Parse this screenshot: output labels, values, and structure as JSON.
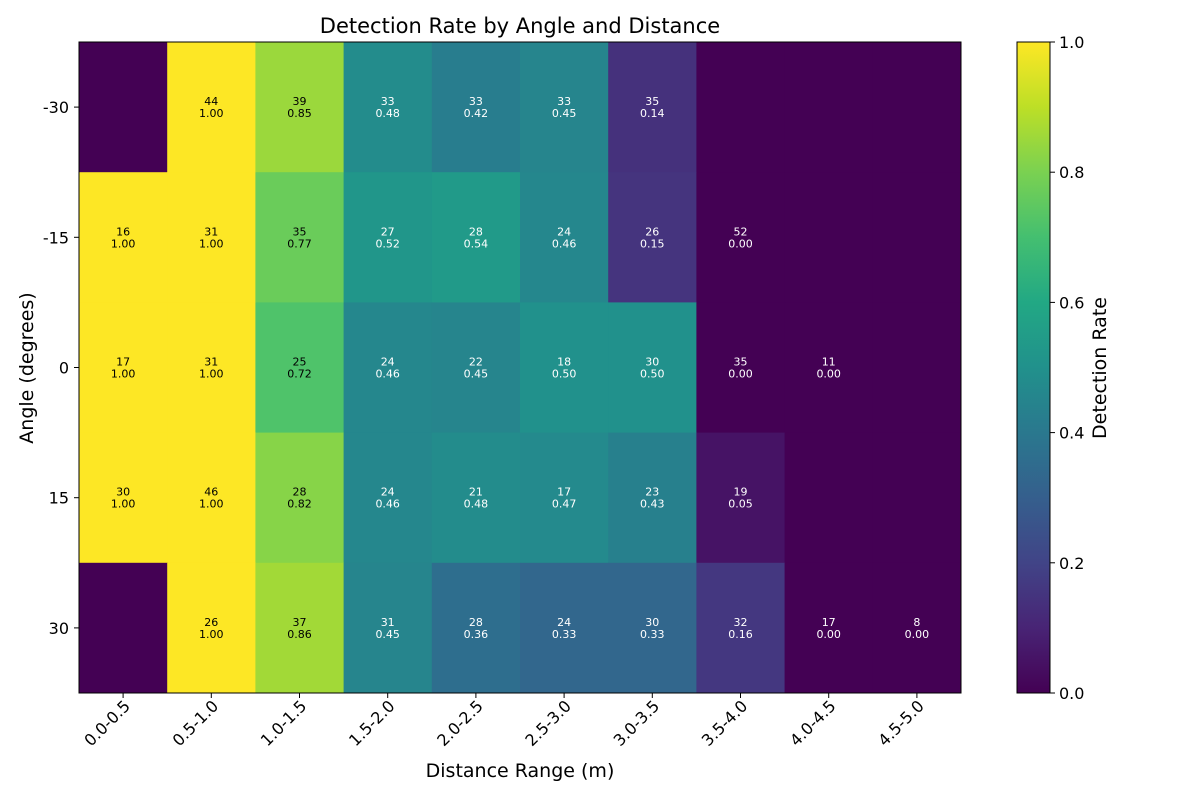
{
  "chart_data": {
    "type": "heatmap",
    "title": "Detection Rate by Angle and Distance",
    "xlabel": "Distance Range (m)",
    "ylabel": "Angle (degrees)",
    "colorbar_label": "Detection Rate",
    "colormap": "viridis",
    "x_categories": [
      "0.0-0.5",
      "0.5-1.0",
      "1.0-1.5",
      "1.5-2.0",
      "2.0-2.5",
      "2.5-3.0",
      "3.0-3.5",
      "3.5-4.0",
      "4.0-4.5",
      "4.5-5.0"
    ],
    "y_categories": [
      "-30",
      "-15",
      "0",
      "15",
      "30"
    ],
    "colorbar_range": [
      0,
      1
    ],
    "colorbar_ticks": [
      "0.0",
      "0.2",
      "0.4",
      "0.6",
      "0.8",
      "1.0"
    ],
    "rates": [
      [
        0.0,
        1.0,
        0.85,
        0.48,
        0.42,
        0.45,
        0.14,
        0.0,
        0.0,
        0.0
      ],
      [
        1.0,
        1.0,
        0.77,
        0.52,
        0.54,
        0.46,
        0.15,
        0.0,
        0.0,
        0.0
      ],
      [
        1.0,
        1.0,
        0.72,
        0.46,
        0.45,
        0.5,
        0.5,
        0.0,
        0.0,
        0.0
      ],
      [
        1.0,
        1.0,
        0.82,
        0.46,
        0.48,
        0.47,
        0.43,
        0.05,
        0.0,
        0.0
      ],
      [
        0.0,
        1.0,
        0.86,
        0.45,
        0.36,
        0.33,
        0.33,
        0.16,
        0.0,
        0.0
      ]
    ],
    "annotations": [
      [
        null,
        {
          "count": "44",
          "rate": "1.00"
        },
        {
          "count": "39",
          "rate": "0.85"
        },
        {
          "count": "33",
          "rate": "0.48"
        },
        {
          "count": "33",
          "rate": "0.42"
        },
        {
          "count": "33",
          "rate": "0.45"
        },
        {
          "count": "35",
          "rate": "0.14"
        },
        null,
        null,
        null
      ],
      [
        {
          "count": "16",
          "rate": "1.00"
        },
        {
          "count": "31",
          "rate": "1.00"
        },
        {
          "count": "35",
          "rate": "0.77"
        },
        {
          "count": "27",
          "rate": "0.52"
        },
        {
          "count": "28",
          "rate": "0.54"
        },
        {
          "count": "24",
          "rate": "0.46"
        },
        {
          "count": "26",
          "rate": "0.15"
        },
        {
          "count": "52",
          "rate": "0.00"
        },
        null,
        null
      ],
      [
        {
          "count": "17",
          "rate": "1.00"
        },
        {
          "count": "31",
          "rate": "1.00"
        },
        {
          "count": "25",
          "rate": "0.72"
        },
        {
          "count": "24",
          "rate": "0.46"
        },
        {
          "count": "22",
          "rate": "0.45"
        },
        {
          "count": "18",
          "rate": "0.50"
        },
        {
          "count": "30",
          "rate": "0.50"
        },
        {
          "count": "35",
          "rate": "0.00"
        },
        {
          "count": "11",
          "rate": "0.00"
        },
        null
      ],
      [
        {
          "count": "30",
          "rate": "1.00"
        },
        {
          "count": "46",
          "rate": "1.00"
        },
        {
          "count": "28",
          "rate": "0.82"
        },
        {
          "count": "24",
          "rate": "0.46"
        },
        {
          "count": "21",
          "rate": "0.48"
        },
        {
          "count": "17",
          "rate": "0.47"
        },
        {
          "count": "23",
          "rate": "0.43"
        },
        {
          "count": "19",
          "rate": "0.05"
        },
        null,
        null
      ],
      [
        null,
        {
          "count": "26",
          "rate": "1.00"
        },
        {
          "count": "37",
          "rate": "0.86"
        },
        {
          "count": "31",
          "rate": "0.45"
        },
        {
          "count": "28",
          "rate": "0.36"
        },
        {
          "count": "24",
          "rate": "0.33"
        },
        {
          "count": "30",
          "rate": "0.33"
        },
        {
          "count": "32",
          "rate": "0.16"
        },
        {
          "count": "17",
          "rate": "0.00"
        },
        {
          "count": "8",
          "rate": "0.00"
        }
      ]
    ]
  }
}
